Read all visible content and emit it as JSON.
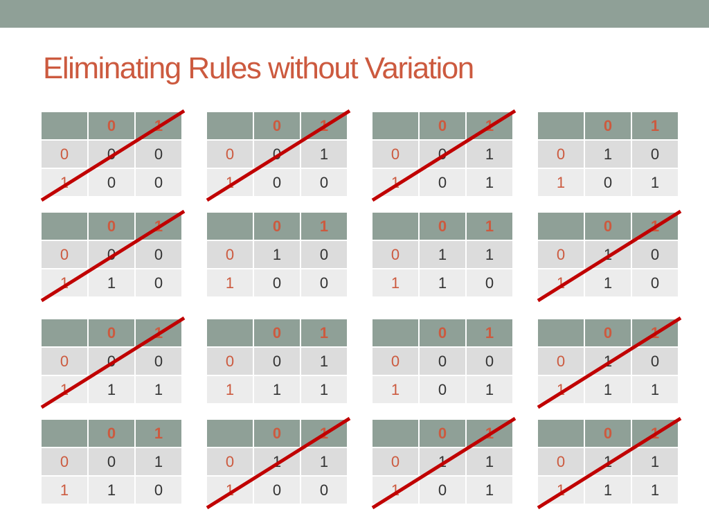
{
  "title": "Eliminating Rules without Variation",
  "tables": [
    {
      "columns": [
        "0",
        "1"
      ],
      "rows": [
        {
          "label": "0",
          "cells": [
            "0",
            "0"
          ]
        },
        {
          "label": "1",
          "cells": [
            "0",
            "0"
          ]
        }
      ],
      "crossed": true
    },
    {
      "columns": [
        "0",
        "1"
      ],
      "rows": [
        {
          "label": "0",
          "cells": [
            "0",
            "1"
          ]
        },
        {
          "label": "1",
          "cells": [
            "0",
            "0"
          ]
        }
      ],
      "crossed": true
    },
    {
      "columns": [
        "0",
        "1"
      ],
      "rows": [
        {
          "label": "0",
          "cells": [
            "0",
            "1"
          ]
        },
        {
          "label": "1",
          "cells": [
            "0",
            "1"
          ]
        }
      ],
      "crossed": true
    },
    {
      "columns": [
        "0",
        "1"
      ],
      "rows": [
        {
          "label": "0",
          "cells": [
            "1",
            "0"
          ]
        },
        {
          "label": "1",
          "cells": [
            "0",
            "1"
          ]
        }
      ],
      "crossed": false
    },
    {
      "columns": [
        "0",
        "1"
      ],
      "rows": [
        {
          "label": "0",
          "cells": [
            "0",
            "0"
          ]
        },
        {
          "label": "1",
          "cells": [
            "1",
            "0"
          ]
        }
      ],
      "crossed": true
    },
    {
      "columns": [
        "0",
        "1"
      ],
      "rows": [
        {
          "label": "0",
          "cells": [
            "1",
            "0"
          ]
        },
        {
          "label": "1",
          "cells": [
            "0",
            "0"
          ]
        }
      ],
      "crossed": false
    },
    {
      "columns": [
        "0",
        "1"
      ],
      "rows": [
        {
          "label": "0",
          "cells": [
            "1",
            "1"
          ]
        },
        {
          "label": "1",
          "cells": [
            "1",
            "0"
          ]
        }
      ],
      "crossed": false
    },
    {
      "columns": [
        "0",
        "1"
      ],
      "rows": [
        {
          "label": "0",
          "cells": [
            "1",
            "0"
          ]
        },
        {
          "label": "1",
          "cells": [
            "1",
            "0"
          ]
        }
      ],
      "crossed": true
    },
    {
      "columns": [
        "0",
        "1"
      ],
      "rows": [
        {
          "label": "0",
          "cells": [
            "0",
            "0"
          ]
        },
        {
          "label": "1",
          "cells": [
            "1",
            "1"
          ]
        }
      ],
      "crossed": true
    },
    {
      "columns": [
        "0",
        "1"
      ],
      "rows": [
        {
          "label": "0",
          "cells": [
            "0",
            "1"
          ]
        },
        {
          "label": "1",
          "cells": [
            "1",
            "1"
          ]
        }
      ],
      "crossed": false
    },
    {
      "columns": [
        "0",
        "1"
      ],
      "rows": [
        {
          "label": "0",
          "cells": [
            "0",
            "0"
          ]
        },
        {
          "label": "1",
          "cells": [
            "0",
            "1"
          ]
        }
      ],
      "crossed": false
    },
    {
      "columns": [
        "0",
        "1"
      ],
      "rows": [
        {
          "label": "0",
          "cells": [
            "1",
            "0"
          ]
        },
        {
          "label": "1",
          "cells": [
            "1",
            "1"
          ]
        }
      ],
      "crossed": true
    },
    {
      "columns": [
        "0",
        "1"
      ],
      "rows": [
        {
          "label": "0",
          "cells": [
            "0",
            "1"
          ]
        },
        {
          "label": "1",
          "cells": [
            "1",
            "0"
          ]
        }
      ],
      "crossed": false
    },
    {
      "columns": [
        "0",
        "1"
      ],
      "rows": [
        {
          "label": "0",
          "cells": [
            "1",
            "1"
          ]
        },
        {
          "label": "1",
          "cells": [
            "0",
            "0"
          ]
        }
      ],
      "crossed": true
    },
    {
      "columns": [
        "0",
        "1"
      ],
      "rows": [
        {
          "label": "0",
          "cells": [
            "1",
            "1"
          ]
        },
        {
          "label": "1",
          "cells": [
            "0",
            "1"
          ]
        }
      ],
      "crossed": true
    },
    {
      "columns": [
        "0",
        "1"
      ],
      "rows": [
        {
          "label": "0",
          "cells": [
            "1",
            "1"
          ]
        },
        {
          "label": "1",
          "cells": [
            "1",
            "1"
          ]
        }
      ],
      "crossed": true
    }
  ]
}
